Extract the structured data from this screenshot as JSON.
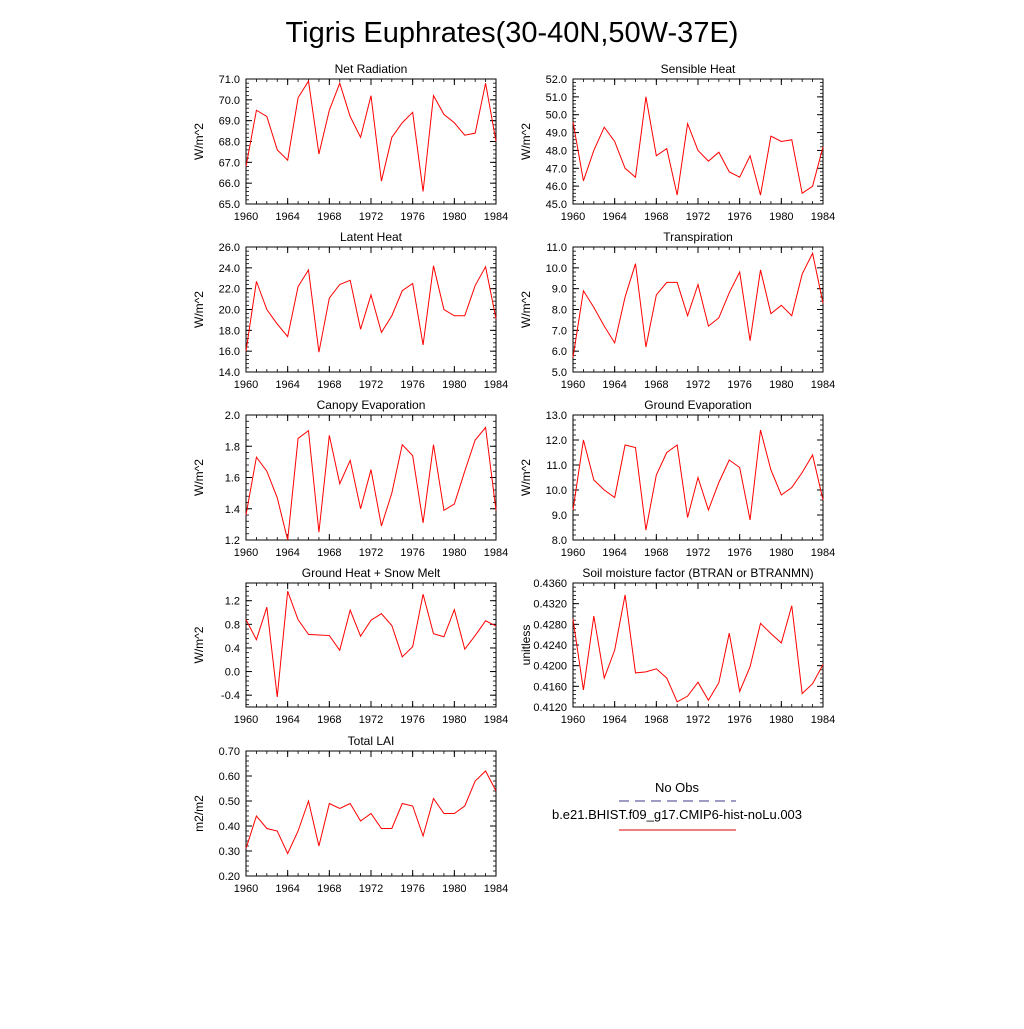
{
  "figure": {
    "title": "Tigris Euphrates(30-40N,50W-37E)"
  },
  "legend": {
    "obs_label": "No Obs",
    "obs_color": "#6060a0",
    "model_label": "b.e21.BHIST.f09_g17.CMIP6-hist-noLu.003",
    "model_color": "#e00000"
  },
  "line_color": "#ff0000",
  "chart_data": [
    {
      "type": "line",
      "title": "Net Radiation",
      "ylabel": "W/m^2",
      "x": [
        1960,
        1961,
        1962,
        1963,
        1964,
        1965,
        1966,
        1967,
        1968,
        1969,
        1970,
        1971,
        1972,
        1973,
        1974,
        1975,
        1976,
        1977,
        1978,
        1979,
        1980,
        1981,
        1982,
        1983,
        1984
      ],
      "values": [
        66.8,
        69.5,
        69.2,
        67.6,
        67.1,
        70.1,
        70.9,
        67.4,
        69.5,
        70.8,
        69.2,
        68.2,
        70.2,
        66.1,
        68.2,
        68.9,
        69.4,
        65.6,
        70.2,
        69.3,
        68.9,
        68.3,
        68.4,
        70.8,
        68.0
      ],
      "xlim": [
        1960,
        1984
      ],
      "ylim": [
        65.0,
        71.0
      ],
      "xticks": [
        1960,
        1964,
        1968,
        1972,
        1976,
        1980,
        1984
      ],
      "yticks": [
        "65.0",
        "66.0",
        "67.0",
        "68.0",
        "69.0",
        "70.0",
        "71.0"
      ]
    },
    {
      "type": "line",
      "title": "Sensible Heat",
      "ylabel": "W/m^2",
      "x": [
        1960,
        1961,
        1962,
        1963,
        1964,
        1965,
        1966,
        1967,
        1968,
        1969,
        1970,
        1971,
        1972,
        1973,
        1974,
        1975,
        1976,
        1977,
        1978,
        1979,
        1980,
        1981,
        1982,
        1983,
        1984
      ],
      "values": [
        49.6,
        46.3,
        48.0,
        49.3,
        48.5,
        47.0,
        46.5,
        51.0,
        47.7,
        48.1,
        45.5,
        49.5,
        48.0,
        47.4,
        47.9,
        46.8,
        46.5,
        47.7,
        45.5,
        48.8,
        48.5,
        48.6,
        45.6,
        46.0,
        48.2
      ],
      "xlim": [
        1960,
        1984
      ],
      "ylim": [
        45.0,
        52.0
      ],
      "xticks": [
        1960,
        1964,
        1968,
        1972,
        1976,
        1980,
        1984
      ],
      "yticks": [
        "45.0",
        "46.0",
        "47.0",
        "48.0",
        "49.0",
        "50.0",
        "51.0",
        "52.0"
      ]
    },
    {
      "type": "line",
      "title": "Latent Heat",
      "ylabel": "W/m^2",
      "x": [
        1960,
        1961,
        1962,
        1963,
        1964,
        1965,
        1966,
        1967,
        1968,
        1969,
        1970,
        1971,
        1972,
        1973,
        1974,
        1975,
        1976,
        1977,
        1978,
        1979,
        1980,
        1981,
        1982,
        1983,
        1984
      ],
      "values": [
        16.0,
        22.7,
        20.0,
        18.6,
        17.4,
        22.2,
        23.8,
        15.9,
        21.1,
        22.4,
        22.8,
        18.1,
        21.4,
        17.8,
        19.4,
        21.8,
        22.5,
        16.6,
        24.2,
        20.0,
        19.4,
        19.4,
        22.3,
        24.1,
        19.1
      ],
      "xlim": [
        1960,
        1984
      ],
      "ylim": [
        14.0,
        26.0
      ],
      "xticks": [
        1960,
        1964,
        1968,
        1972,
        1976,
        1980,
        1984
      ],
      "yticks": [
        "14.0",
        "16.0",
        "18.0",
        "20.0",
        "22.0",
        "24.0",
        "26.0"
      ]
    },
    {
      "type": "line",
      "title": "Transpiration",
      "ylabel": "W/m^2",
      "x": [
        1960,
        1961,
        1962,
        1963,
        1964,
        1965,
        1966,
        1967,
        1968,
        1969,
        1970,
        1971,
        1972,
        1973,
        1974,
        1975,
        1976,
        1977,
        1978,
        1979,
        1980,
        1981,
        1982,
        1983,
        1984
      ],
      "values": [
        5.7,
        8.9,
        8.1,
        7.2,
        6.4,
        8.6,
        10.2,
        6.2,
        8.7,
        9.3,
        9.3,
        7.7,
        9.2,
        7.2,
        7.6,
        8.8,
        9.8,
        6.5,
        9.9,
        7.8,
        8.2,
        7.7,
        9.7,
        10.7,
        8.3
      ],
      "xlim": [
        1960,
        1984
      ],
      "ylim": [
        5.0,
        11.0
      ],
      "xticks": [
        1960,
        1964,
        1968,
        1972,
        1976,
        1980,
        1984
      ],
      "yticks": [
        "5.0",
        "6.0",
        "7.0",
        "8.0",
        "9.0",
        "10.0",
        "11.0"
      ]
    },
    {
      "type": "line",
      "title": "Canopy Evaporation",
      "ylabel": "W/m^2",
      "x": [
        1960,
        1961,
        1962,
        1963,
        1964,
        1965,
        1966,
        1967,
        1968,
        1969,
        1970,
        1971,
        1972,
        1973,
        1974,
        1975,
        1976,
        1977,
        1978,
        1979,
        1980,
        1981,
        1982,
        1983,
        1984
      ],
      "values": [
        1.36,
        1.73,
        1.64,
        1.47,
        1.2,
        1.85,
        1.9,
        1.25,
        1.87,
        1.56,
        1.71,
        1.4,
        1.65,
        1.29,
        1.5,
        1.81,
        1.74,
        1.31,
        1.81,
        1.39,
        1.43,
        1.64,
        1.84,
        1.92,
        1.39
      ],
      "xlim": [
        1960,
        1984
      ],
      "ylim": [
        1.2,
        2.0
      ],
      "xticks": [
        1960,
        1964,
        1968,
        1972,
        1976,
        1980,
        1984
      ],
      "yticks": [
        "1.2",
        "1.4",
        "1.6",
        "1.8",
        "2.0"
      ]
    },
    {
      "type": "line",
      "title": "Ground Evaporation",
      "ylabel": "W/m^2",
      "x": [
        1960,
        1961,
        1962,
        1963,
        1964,
        1965,
        1966,
        1967,
        1968,
        1969,
        1970,
        1971,
        1972,
        1973,
        1974,
        1975,
        1976,
        1977,
        1978,
        1979,
        1980,
        1981,
        1982,
        1983,
        1984
      ],
      "values": [
        9.2,
        12.0,
        10.4,
        10.0,
        9.7,
        11.8,
        11.7,
        8.4,
        10.6,
        11.5,
        11.8,
        8.9,
        10.5,
        9.2,
        10.3,
        11.2,
        10.9,
        8.8,
        12.4,
        10.8,
        9.8,
        10.1,
        10.7,
        11.4,
        9.6
      ],
      "xlim": [
        1960,
        1984
      ],
      "ylim": [
        8.0,
        13.0
      ],
      "xticks": [
        1960,
        1964,
        1968,
        1972,
        1976,
        1980,
        1984
      ],
      "yticks": [
        "8.0",
        "9.0",
        "10.0",
        "11.0",
        "12.0",
        "13.0"
      ]
    },
    {
      "type": "line",
      "title": "Ground Heat + Snow Melt",
      "ylabel": "W/m^2",
      "x": [
        1960,
        1961,
        1962,
        1963,
        1964,
        1965,
        1966,
        1967,
        1968,
        1969,
        1970,
        1971,
        1972,
        1973,
        1974,
        1975,
        1976,
        1977,
        1978,
        1979,
        1980,
        1981,
        1982,
        1983,
        1984
      ],
      "values": [
        0.88,
        0.54,
        1.09,
        -0.43,
        1.36,
        0.88,
        0.63,
        0.62,
        0.61,
        0.36,
        1.04,
        0.6,
        0.87,
        0.98,
        0.78,
        0.25,
        0.42,
        1.31,
        0.64,
        0.59,
        1.05,
        0.38,
        0.61,
        0.86,
        0.77
      ],
      "xlim": [
        1960,
        1984
      ],
      "ylim": [
        -0.6,
        1.5
      ],
      "xticks": [
        1960,
        1964,
        1968,
        1972,
        1976,
        1980,
        1984
      ],
      "yticks": [
        "-0.4",
        "0.0",
        "0.4",
        "0.8",
        "1.2"
      ]
    },
    {
      "type": "line",
      "title": "Soil moisture factor (BTRAN or BTRANMN)",
      "ylabel": "unitless",
      "x": [
        1960,
        1961,
        1962,
        1963,
        1964,
        1965,
        1966,
        1967,
        1968,
        1969,
        1970,
        1971,
        1972,
        1973,
        1974,
        1975,
        1976,
        1977,
        1978,
        1979,
        1980,
        1981,
        1982,
        1983,
        1984
      ],
      "values": [
        0.429,
        0.4153,
        0.4296,
        0.4176,
        0.423,
        0.4337,
        0.4186,
        0.4188,
        0.4194,
        0.4176,
        0.413,
        0.4141,
        0.4168,
        0.4133,
        0.4167,
        0.4263,
        0.415,
        0.4198,
        0.4282,
        0.4262,
        0.4244,
        0.4316,
        0.4146,
        0.4165,
        0.4202
      ],
      "xlim": [
        1960,
        1984
      ],
      "ylim": [
        0.412,
        0.436
      ],
      "xticks": [
        1960,
        1964,
        1968,
        1972,
        1976,
        1980,
        1984
      ],
      "yticks": [
        "0.4120",
        "0.4160",
        "0.4200",
        "0.4240",
        "0.4280",
        "0.4320",
        "0.4360"
      ]
    },
    {
      "type": "line",
      "title": "Total LAI",
      "ylabel": "m2/m2",
      "x": [
        1960,
        1961,
        1962,
        1963,
        1964,
        1965,
        1966,
        1967,
        1968,
        1969,
        1970,
        1971,
        1972,
        1973,
        1974,
        1975,
        1976,
        1977,
        1978,
        1979,
        1980,
        1981,
        1982,
        1983,
        1984
      ],
      "values": [
        0.31,
        0.44,
        0.39,
        0.38,
        0.29,
        0.38,
        0.5,
        0.32,
        0.49,
        0.47,
        0.49,
        0.42,
        0.45,
        0.39,
        0.39,
        0.49,
        0.48,
        0.36,
        0.51,
        0.45,
        0.45,
        0.48,
        0.58,
        0.62,
        0.54
      ],
      "xlim": [
        1960,
        1984
      ],
      "ylim": [
        0.2,
        0.7
      ],
      "xticks": [
        1960,
        1964,
        1968,
        1972,
        1976,
        1980,
        1984
      ],
      "yticks": [
        "0.20",
        "0.30",
        "0.40",
        "0.50",
        "0.60",
        "0.70"
      ]
    }
  ]
}
